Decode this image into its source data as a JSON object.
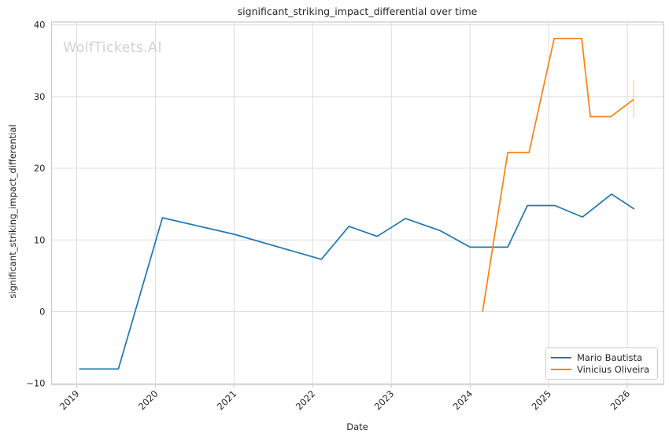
{
  "watermark": "WolfTickets.AI",
  "chart_data": {
    "type": "line",
    "title": "significant_striking_impact_differential over time",
    "xlabel": "Date",
    "ylabel": "significant_striking_impact_differential",
    "grid": true,
    "legend_position": "lower right",
    "xlim": [
      2018.68,
      2026.46
    ],
    "ylim": [
      -10.2,
      40.4
    ],
    "x_ticks": [
      2019,
      2020,
      2021,
      2022,
      2023,
      2024,
      2025,
      2026
    ],
    "x_tick_labels": [
      "2019",
      "2020",
      "2021",
      "2022",
      "2023",
      "2024",
      "2025",
      "2026"
    ],
    "y_ticks": [
      -10,
      0,
      10,
      20,
      30,
      40
    ],
    "y_tick_labels": [
      "−10",
      "0",
      "10",
      "20",
      "30",
      "40"
    ],
    "series": [
      {
        "name": "Mario Bautista",
        "color": "#1f77b4",
        "x": [
          2019.03,
          2019.53,
          2020.09,
          2021.0,
          2022.11,
          2022.46,
          2022.82,
          2023.18,
          2023.62,
          2024.0,
          2024.48,
          2024.73,
          2025.08,
          2025.43,
          2025.8,
          2026.09
        ],
        "y": [
          -8.0,
          -8.0,
          13.1,
          10.8,
          7.3,
          11.9,
          10.5,
          13.0,
          11.3,
          9.0,
          9.0,
          14.8,
          14.8,
          13.2,
          16.4,
          14.3
        ]
      },
      {
        "name": "Vinicius Oliveira",
        "color": "#ff7f0e",
        "x": [
          2024.16,
          2024.48,
          2024.75,
          2025.07,
          2025.42,
          2025.53,
          2025.79,
          2026.08
        ],
        "y": [
          0.0,
          22.2,
          22.2,
          38.1,
          38.1,
          27.2,
          27.2,
          29.6
        ],
        "error_bar": {
          "x": 2026.08,
          "y_min": 27.0,
          "y_max": 32.3
        }
      }
    ]
  },
  "style_colors": {
    "grid": "#dcdcdc",
    "spine": "#c9c9c9",
    "text": "#262626",
    "watermark": "#d2d2d2",
    "background": "#ffffff"
  }
}
